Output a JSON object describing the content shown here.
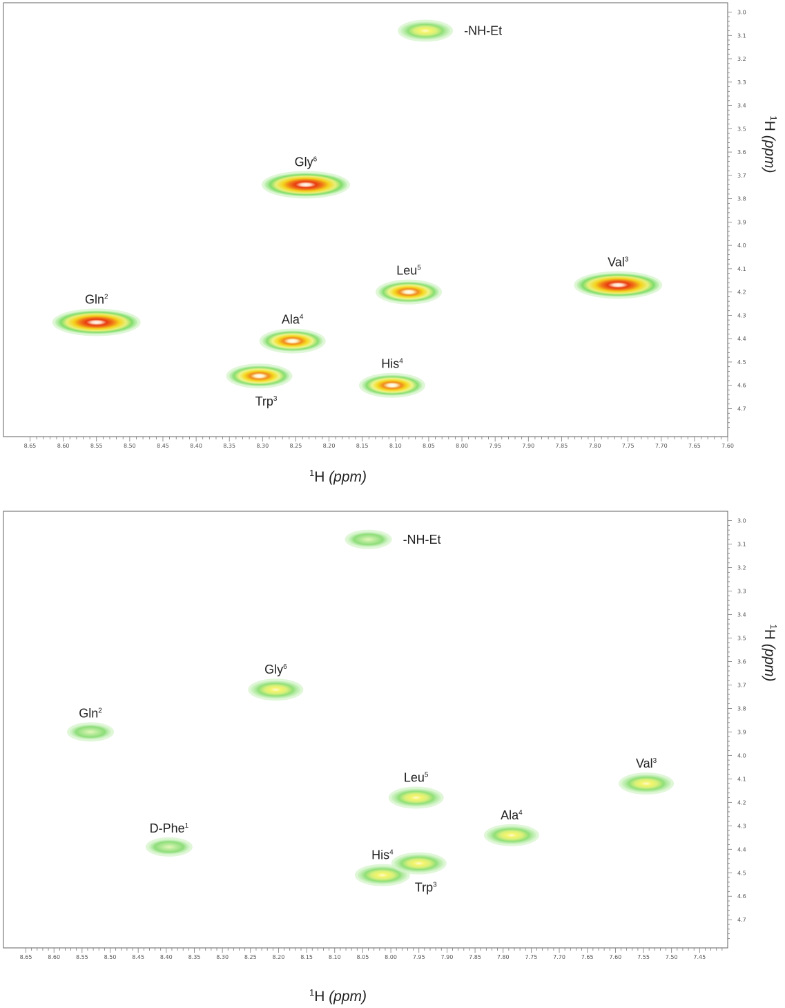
{
  "chart_data": [
    {
      "type": "scatter",
      "title": "",
      "xlabel": {
        "sup": "1",
        "base": "H",
        "unit": "(ppm)"
      },
      "ylabel": {
        "sup": "1",
        "base": "H",
        "unit": "(ppm)"
      },
      "x_axis": "reversed",
      "xlim": [
        8.69,
        7.6
      ],
      "ylim": [
        2.96,
        4.82
      ],
      "x_ticks": [
        "8.65",
        "8.60",
        "8.55",
        "8.50",
        "8.45",
        "8.40",
        "8.35",
        "8.30",
        "8.25",
        "8.20",
        "8.15",
        "8.10",
        "8.05",
        "8.00",
        "7.95",
        "7.90",
        "7.85",
        "7.80",
        "7.75",
        "7.70",
        "7.65",
        "7.60"
      ],
      "y_ticks": [
        "3.0",
        "3.1",
        "3.2",
        "3.3",
        "3.4",
        "3.5",
        "3.6",
        "3.7",
        "3.8",
        "3.9",
        "4.0",
        "4.1",
        "4.2",
        "4.3",
        "4.4",
        "4.5",
        "4.6",
        "4.7"
      ],
      "peaks": [
        {
          "name": "-NH-Et",
          "base": "-NH-Et",
          "sup": "",
          "x": 8.055,
          "y": 3.08,
          "intensity": 0.4,
          "label_side": "right"
        },
        {
          "name": "Gly6",
          "base": "Gly",
          "sup": "6",
          "x": 8.235,
          "y": 3.74,
          "intensity": 1.0,
          "label_side": "top"
        },
        {
          "name": "Leu5",
          "base": "Leu",
          "sup": "5",
          "x": 8.08,
          "y": 4.2,
          "intensity": 0.85,
          "label_side": "top"
        },
        {
          "name": "Val3",
          "base": "Val",
          "sup": "3",
          "x": 7.765,
          "y": 4.17,
          "intensity": 1.0,
          "label_side": "top"
        },
        {
          "name": "Gln2",
          "base": "Gln",
          "sup": "2",
          "x": 8.55,
          "y": 4.33,
          "intensity": 1.0,
          "label_side": "top"
        },
        {
          "name": "Ala4",
          "base": "Ala",
          "sup": "4",
          "x": 8.255,
          "y": 4.41,
          "intensity": 0.85,
          "label_side": "top"
        },
        {
          "name": "His4",
          "base": "His",
          "sup": "4",
          "x": 8.105,
          "y": 4.6,
          "intensity": 0.85,
          "label_side": "top"
        },
        {
          "name": "Trp3",
          "base": "Trp",
          "sup": "3",
          "x": 8.305,
          "y": 4.56,
          "intensity": 0.85,
          "label_side": "bottom"
        }
      ]
    },
    {
      "type": "scatter",
      "title": "",
      "xlabel": {
        "sup": "1",
        "base": "H",
        "unit": "(ppm)"
      },
      "ylabel": {
        "sup": "1",
        "base": "H",
        "unit": "(ppm)"
      },
      "x_axis": "reversed",
      "xlim": [
        8.69,
        7.4
      ],
      "ylim": [
        2.96,
        4.82
      ],
      "x_ticks": [
        "8.65",
        "8.60",
        "8.55",
        "8.50",
        "8.45",
        "8.40",
        "8.35",
        "8.30",
        "8.25",
        "8.20",
        "8.15",
        "8.10",
        "8.05",
        "8.00",
        "7.95",
        "7.90",
        "7.85",
        "7.80",
        "7.75",
        "7.70",
        "7.65",
        "7.60",
        "7.55",
        "7.50",
        "7.45"
      ],
      "y_ticks": [
        "3.0",
        "3.1",
        "3.2",
        "3.3",
        "3.4",
        "3.5",
        "3.6",
        "3.7",
        "3.8",
        "3.9",
        "4.0",
        "4.1",
        "4.2",
        "4.3",
        "4.4",
        "4.5",
        "4.6",
        "4.7"
      ],
      "peaks": [
        {
          "name": "-NH-Et",
          "base": "-NH-Et",
          "sup": "",
          "x": 8.04,
          "y": 3.08,
          "intensity": 0.15,
          "label_side": "right"
        },
        {
          "name": "Gly6",
          "base": "Gly",
          "sup": "6",
          "x": 8.205,
          "y": 3.72,
          "intensity": 0.5,
          "label_side": "top"
        },
        {
          "name": "Gln2",
          "base": "Gln",
          "sup": "2",
          "x": 8.535,
          "y": 3.9,
          "intensity": 0.2,
          "label_side": "top"
        },
        {
          "name": "Leu5",
          "base": "Leu",
          "sup": "5",
          "x": 7.955,
          "y": 4.18,
          "intensity": 0.45,
          "label_side": "top"
        },
        {
          "name": "Val3",
          "base": "Val",
          "sup": "3",
          "x": 7.545,
          "y": 4.12,
          "intensity": 0.45,
          "label_side": "top"
        },
        {
          "name": "Ala4",
          "base": "Ala",
          "sup": "4",
          "x": 7.785,
          "y": 4.34,
          "intensity": 0.35,
          "label_side": "top"
        },
        {
          "name": "D-Phe1",
          "base": "D-Phe",
          "sup": "1",
          "x": 8.395,
          "y": 4.39,
          "intensity": 0.1,
          "label_side": "top"
        },
        {
          "name": "His4",
          "base": "His",
          "sup": "4",
          "x": 8.015,
          "y": 4.51,
          "intensity": 0.45,
          "label_side": "top"
        },
        {
          "name": "Trp3",
          "base": "Trp",
          "sup": "3",
          "x": 7.95,
          "y": 4.46,
          "intensity": 0.3,
          "label_side": "bottom"
        }
      ]
    }
  ]
}
